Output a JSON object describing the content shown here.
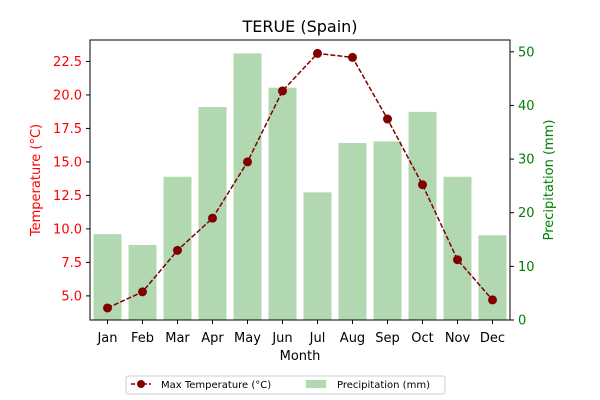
{
  "chart_data": {
    "type": "bar+line",
    "title": "TERUE (Spain)",
    "xlabel": "Month",
    "categories": [
      "Jan",
      "Feb",
      "Mar",
      "Apr",
      "May",
      "Jun",
      "Jul",
      "Aug",
      "Sep",
      "Oct",
      "Nov",
      "Dec"
    ],
    "series": [
      {
        "name": "Max Temperature (°C)",
        "kind": "line",
        "axis": "left",
        "values": [
          4.1,
          5.3,
          8.4,
          10.8,
          15.0,
          20.3,
          23.1,
          22.8,
          18.2,
          13.3,
          7.7,
          4.7
        ]
      },
      {
        "name": "Precipitation (mm)",
        "kind": "bar",
        "axis": "right",
        "values": [
          16,
          14,
          26.7,
          39.7,
          49.7,
          43.3,
          23.8,
          33,
          33.3,
          38.8,
          26.7,
          15.8
        ]
      }
    ],
    "y_left": {
      "label": "Temperature (°C)",
      "ylim": [
        3.2,
        24.1
      ],
      "ticks": [
        "5.0",
        "7.5",
        "10.0",
        "12.5",
        "15.0",
        "17.5",
        "20.0",
        "22.5"
      ],
      "tick_values": [
        5.0,
        7.5,
        10.0,
        12.5,
        15.0,
        17.5,
        20.0,
        22.5
      ],
      "color": "#ff0000"
    },
    "y_right": {
      "label": "Precipitation (mm)",
      "ylim": [
        0,
        52.2
      ],
      "ticks": [
        "0",
        "10",
        "20",
        "30",
        "40",
        "50"
      ],
      "tick_values": [
        0,
        10,
        20,
        30,
        40,
        50
      ],
      "color": "#008000"
    },
    "line_color": "#800000",
    "bar_color": "#b2d8b2",
    "grid": false,
    "legend_placement": "bottom-center"
  }
}
